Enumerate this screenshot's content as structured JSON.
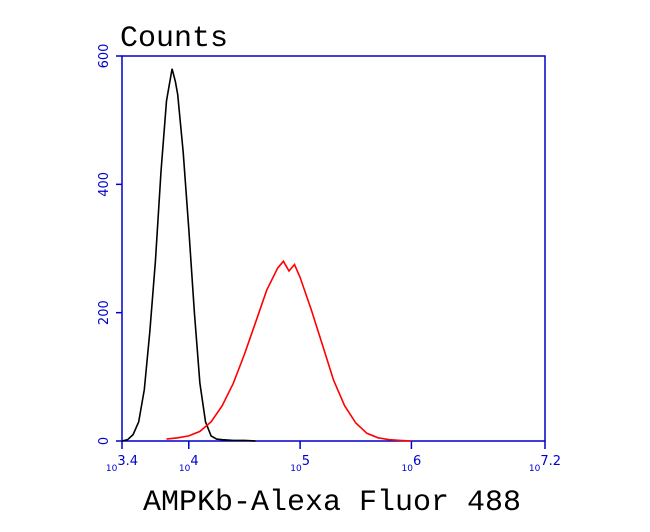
{
  "chart_data": {
    "type": "line",
    "title": "Counts",
    "x_label": "AMPKb-Alexa Fluor 488",
    "x_tick_base": "10",
    "xlim": [
      3.4,
      7.2
    ],
    "xticks": [
      3.4,
      4,
      5,
      6,
      7.2
    ],
    "xscale": "log10-exponent",
    "ylim": [
      0,
      600
    ],
    "yticks": [
      0,
      200,
      400,
      600
    ],
    "axis_color": "#0000cc",
    "series": [
      {
        "color": "#000000",
        "x": [
          3.4,
          3.45,
          3.5,
          3.55,
          3.6,
          3.65,
          3.7,
          3.75,
          3.8,
          3.85,
          3.88,
          3.9,
          3.95,
          4.0,
          4.05,
          4.1,
          4.15,
          4.2,
          4.25,
          4.3,
          4.4,
          4.5,
          4.6
        ],
        "values": [
          0,
          2,
          10,
          30,
          80,
          170,
          280,
          420,
          530,
          580,
          560,
          540,
          450,
          330,
          200,
          90,
          30,
          8,
          3,
          2,
          1,
          1,
          0
        ]
      },
      {
        "color": "#ff0000",
        "x": [
          3.8,
          3.9,
          4.0,
          4.1,
          4.2,
          4.3,
          4.4,
          4.5,
          4.6,
          4.7,
          4.8,
          4.85,
          4.9,
          4.95,
          5.0,
          5.1,
          5.2,
          5.3,
          5.4,
          5.5,
          5.6,
          5.7,
          5.8,
          5.9,
          6.0
        ],
        "values": [
          3,
          5,
          8,
          15,
          30,
          55,
          90,
          135,
          185,
          235,
          270,
          280,
          265,
          275,
          255,
          205,
          150,
          95,
          55,
          28,
          12,
          5,
          2,
          1,
          0
        ]
      }
    ]
  }
}
